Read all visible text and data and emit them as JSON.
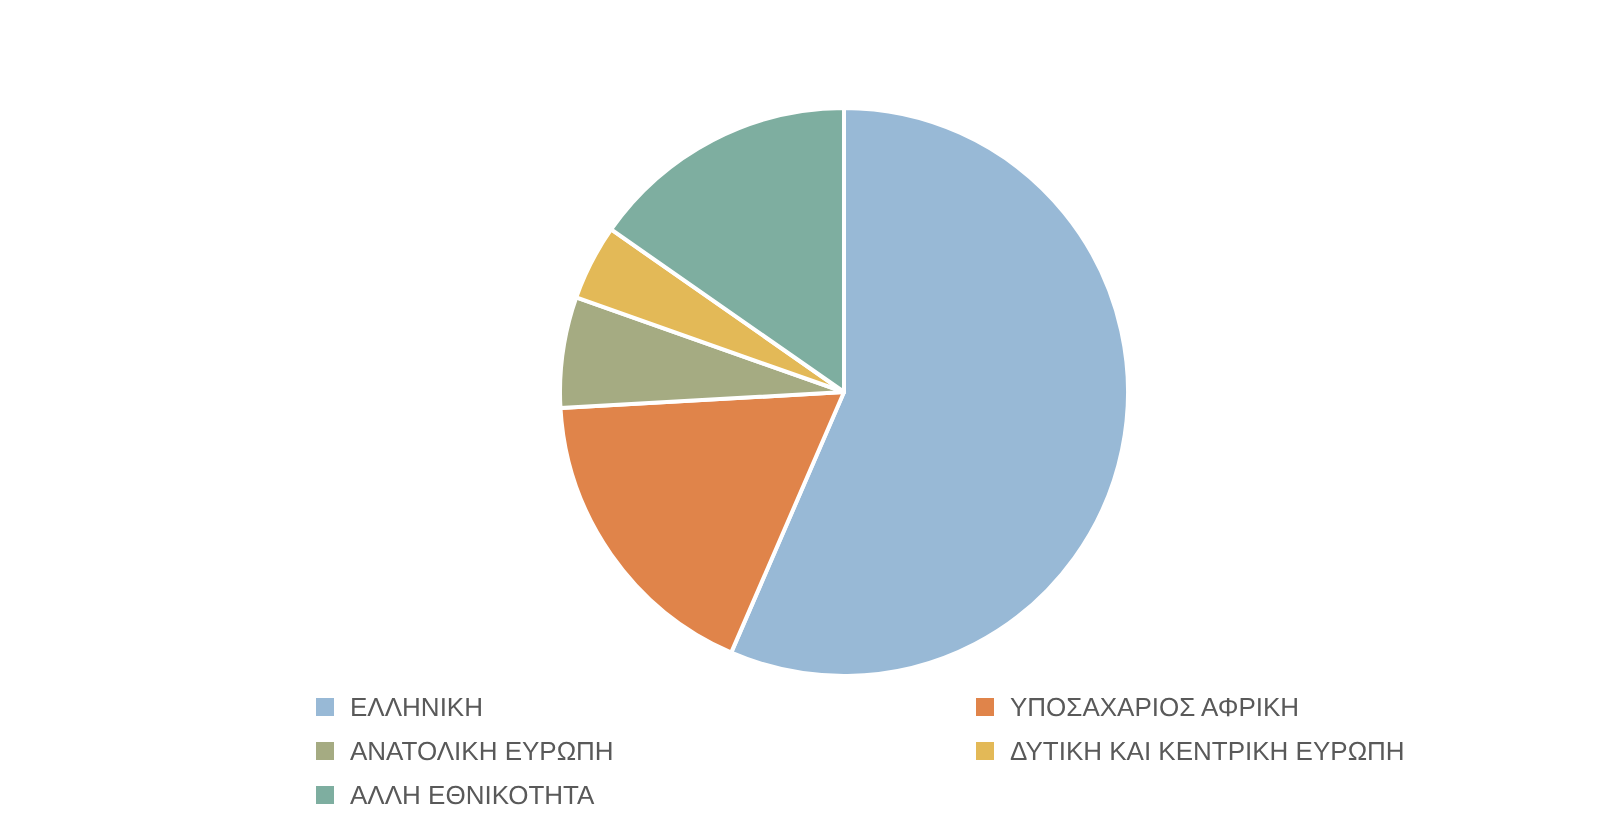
{
  "chart_data": {
    "type": "pie",
    "categories": [
      "ΕΛΛΗΝΙΚΗ",
      "ΥΠΟΣΑΧΑΡΙΟΣ ΑΦΡΙΚΗ",
      "ΑΝΑΤΟΛΙΚΗ ΕΥΡΩΠΗ",
      "ΔΥΤΙΚΗ ΚΑΙ ΚΕΝΤΡΙΚΗ ΕΥΡΩΠΗ",
      "ΑΛΛΗ ΕΘΝΙΚΟΤΗΤΑ"
    ],
    "values": [
      56.5,
      17.6,
      6.3,
      4.3,
      15.3
    ],
    "colors": [
      "#98b9d6",
      "#e0844a",
      "#a5ab82",
      "#e3b957",
      "#7eaea0"
    ],
    "legend": "bottom"
  }
}
